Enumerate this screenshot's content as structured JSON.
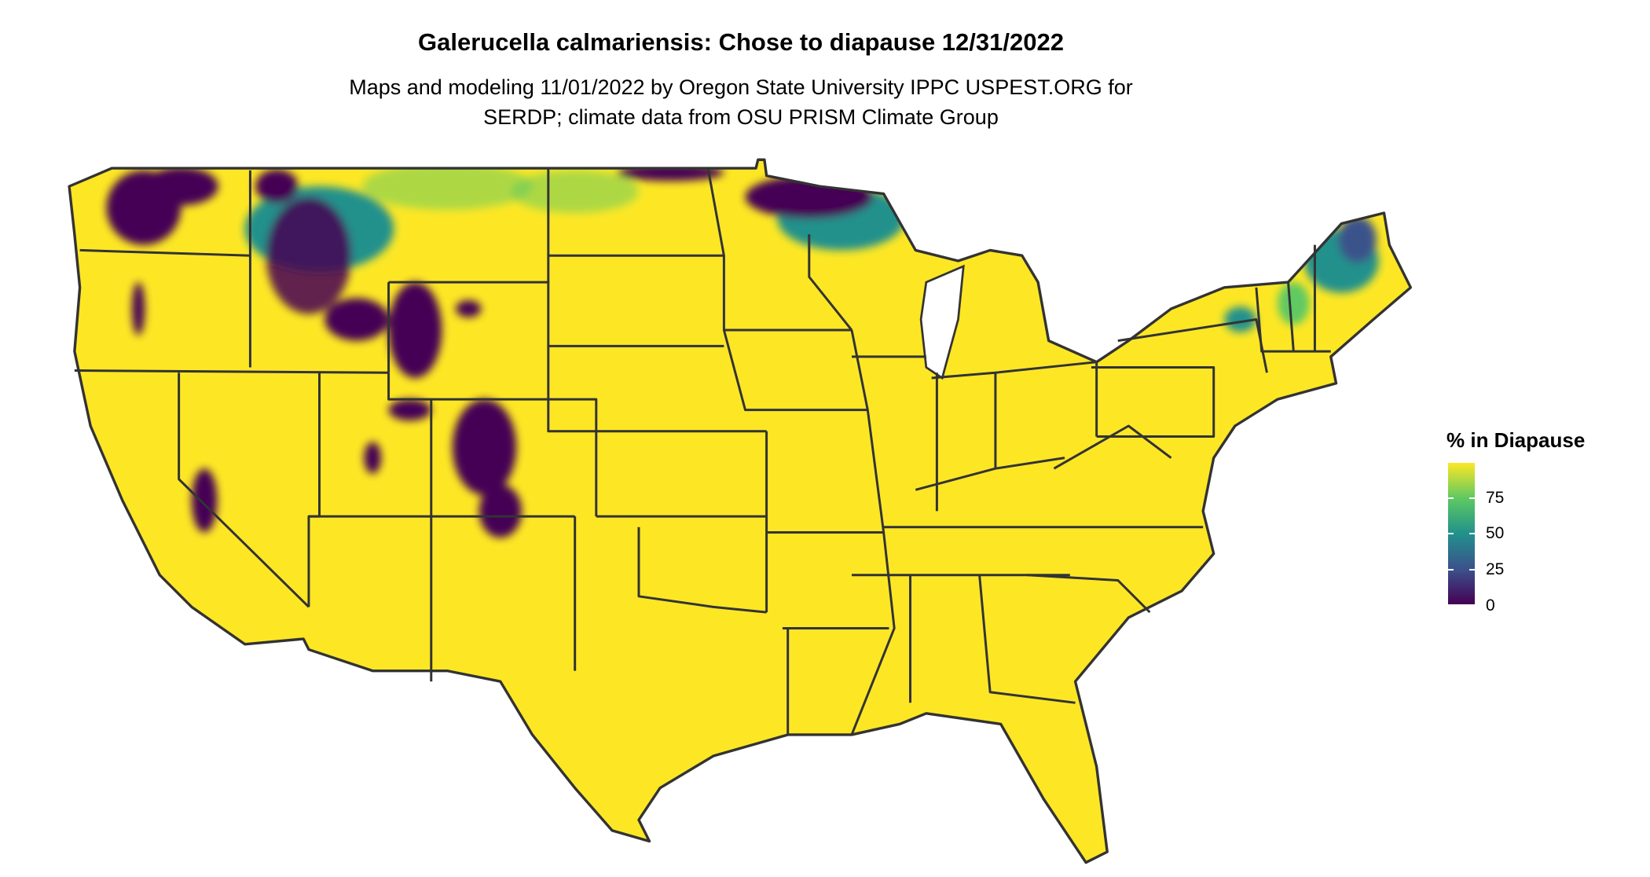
{
  "title": "Galerucella calmariensis: Chose to diapause 12/31/2022",
  "subtitle_line1": "Maps and modeling 11/01/2022 by Oregon State University IPPC USPEST.ORG for",
  "subtitle_line2": "SERDP; climate data from OSU PRISM Climate Group",
  "legend": {
    "title": "% in Diapause",
    "ticks": [
      "75",
      "50",
      "25",
      "0"
    ],
    "range": [
      0,
      100
    ],
    "colormap": "viridis",
    "colors": {
      "low": "#440154",
      "q25": "#3b528b",
      "mid": "#21918c",
      "q75": "#5ec962",
      "high": "#fde725"
    }
  },
  "map": {
    "region": "Conterminous United States",
    "fill_majority": "#fde725",
    "border_color": "#333333"
  }
}
